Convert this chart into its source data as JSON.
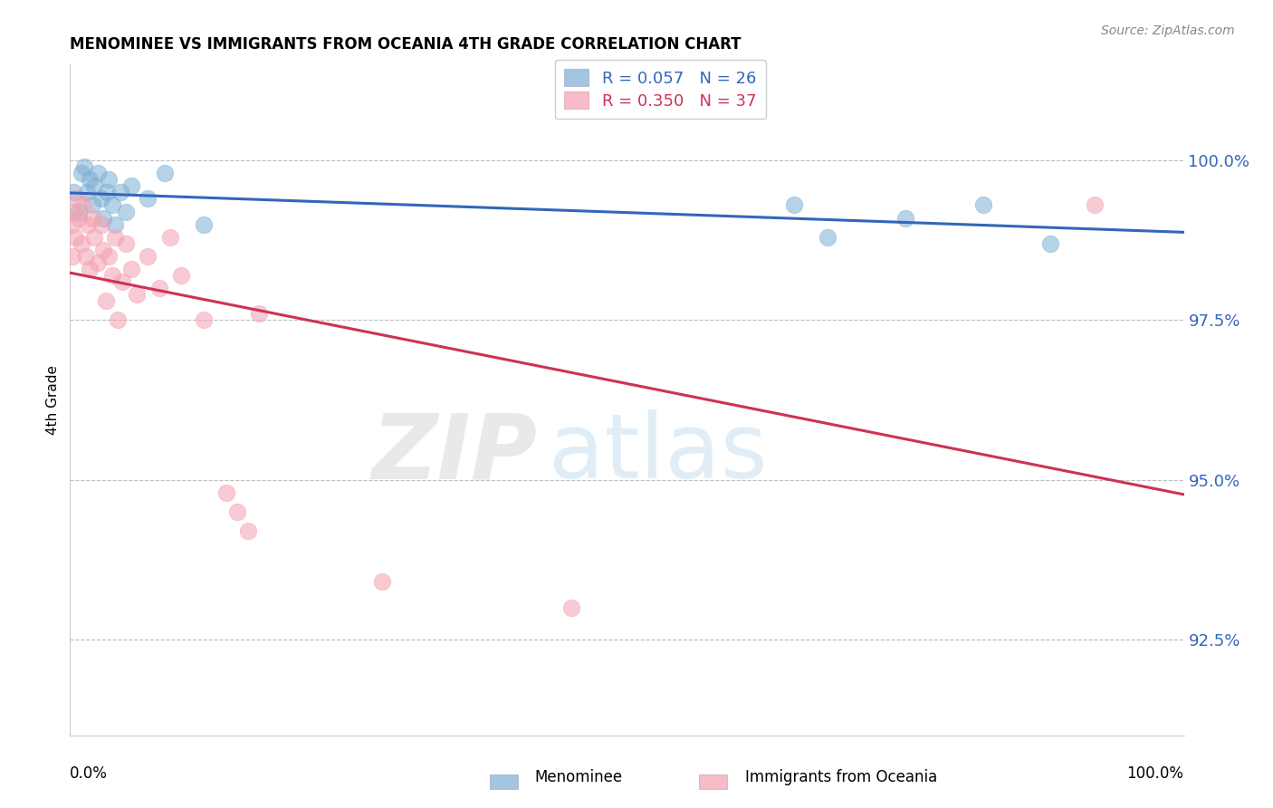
{
  "title": "MENOMINEE VS IMMIGRANTS FROM OCEANIA 4TH GRADE CORRELATION CHART",
  "source": "Source: ZipAtlas.com",
  "ylabel": "4th Grade",
  "xlim": [
    0.0,
    100.0
  ],
  "ylim": [
    91.0,
    101.5
  ],
  "yticks": [
    92.5,
    95.0,
    97.5,
    100.0
  ],
  "ytick_labels": [
    "92.5%",
    "95.0%",
    "97.5%",
    "100.0%"
  ],
  "blue_R": 0.057,
  "blue_N": 26,
  "pink_R": 0.35,
  "pink_N": 37,
  "blue_color": "#7BAFD4",
  "pink_color": "#F4A0B0",
  "blue_line_color": "#3366BB",
  "pink_line_color": "#CC3355",
  "legend_label_blue": "Menominee",
  "legend_label_pink": "Immigrants from Oceania",
  "blue_scatter_x": [
    0.3,
    0.8,
    1.0,
    1.3,
    1.5,
    1.8,
    2.0,
    2.2,
    2.5,
    2.8,
    3.0,
    3.3,
    3.5,
    3.8,
    4.0,
    4.5,
    5.0,
    5.5,
    7.0,
    8.5,
    12.0,
    65.0,
    68.0,
    75.0,
    82.0,
    88.0
  ],
  "blue_scatter_y": [
    99.5,
    99.2,
    99.8,
    99.9,
    99.5,
    99.7,
    99.3,
    99.6,
    99.8,
    99.4,
    99.1,
    99.5,
    99.7,
    99.3,
    99.0,
    99.5,
    99.2,
    99.6,
    99.4,
    99.8,
    99.0,
    99.3,
    98.8,
    99.1,
    99.3,
    98.7
  ],
  "pink_scatter_x": [
    0.1,
    0.2,
    0.3,
    0.5,
    0.6,
    0.8,
    1.0,
    1.2,
    1.4,
    1.6,
    1.8,
    2.0,
    2.2,
    2.5,
    2.8,
    3.0,
    3.2,
    3.5,
    3.8,
    4.0,
    4.3,
    4.7,
    5.0,
    5.5,
    6.0,
    7.0,
    8.0,
    9.0,
    10.0,
    12.0,
    14.0,
    15.0,
    16.0,
    17.0,
    28.0,
    45.0,
    92.0
  ],
  "pink_scatter_y": [
    99.0,
    98.5,
    99.2,
    98.8,
    99.4,
    99.1,
    98.7,
    99.3,
    98.5,
    99.0,
    98.3,
    99.1,
    98.8,
    98.4,
    99.0,
    98.6,
    97.8,
    98.5,
    98.2,
    98.8,
    97.5,
    98.1,
    98.7,
    98.3,
    97.9,
    98.5,
    98.0,
    98.8,
    98.2,
    97.5,
    94.8,
    94.5,
    94.2,
    97.6,
    93.4,
    93.0,
    99.3
  ],
  "watermark_zip": "ZIP",
  "watermark_atlas": "atlas",
  "background_color": "#FFFFFF",
  "grid_color": "#BBBBBB",
  "ytick_color": "#3366BB",
  "source_color": "#888888"
}
